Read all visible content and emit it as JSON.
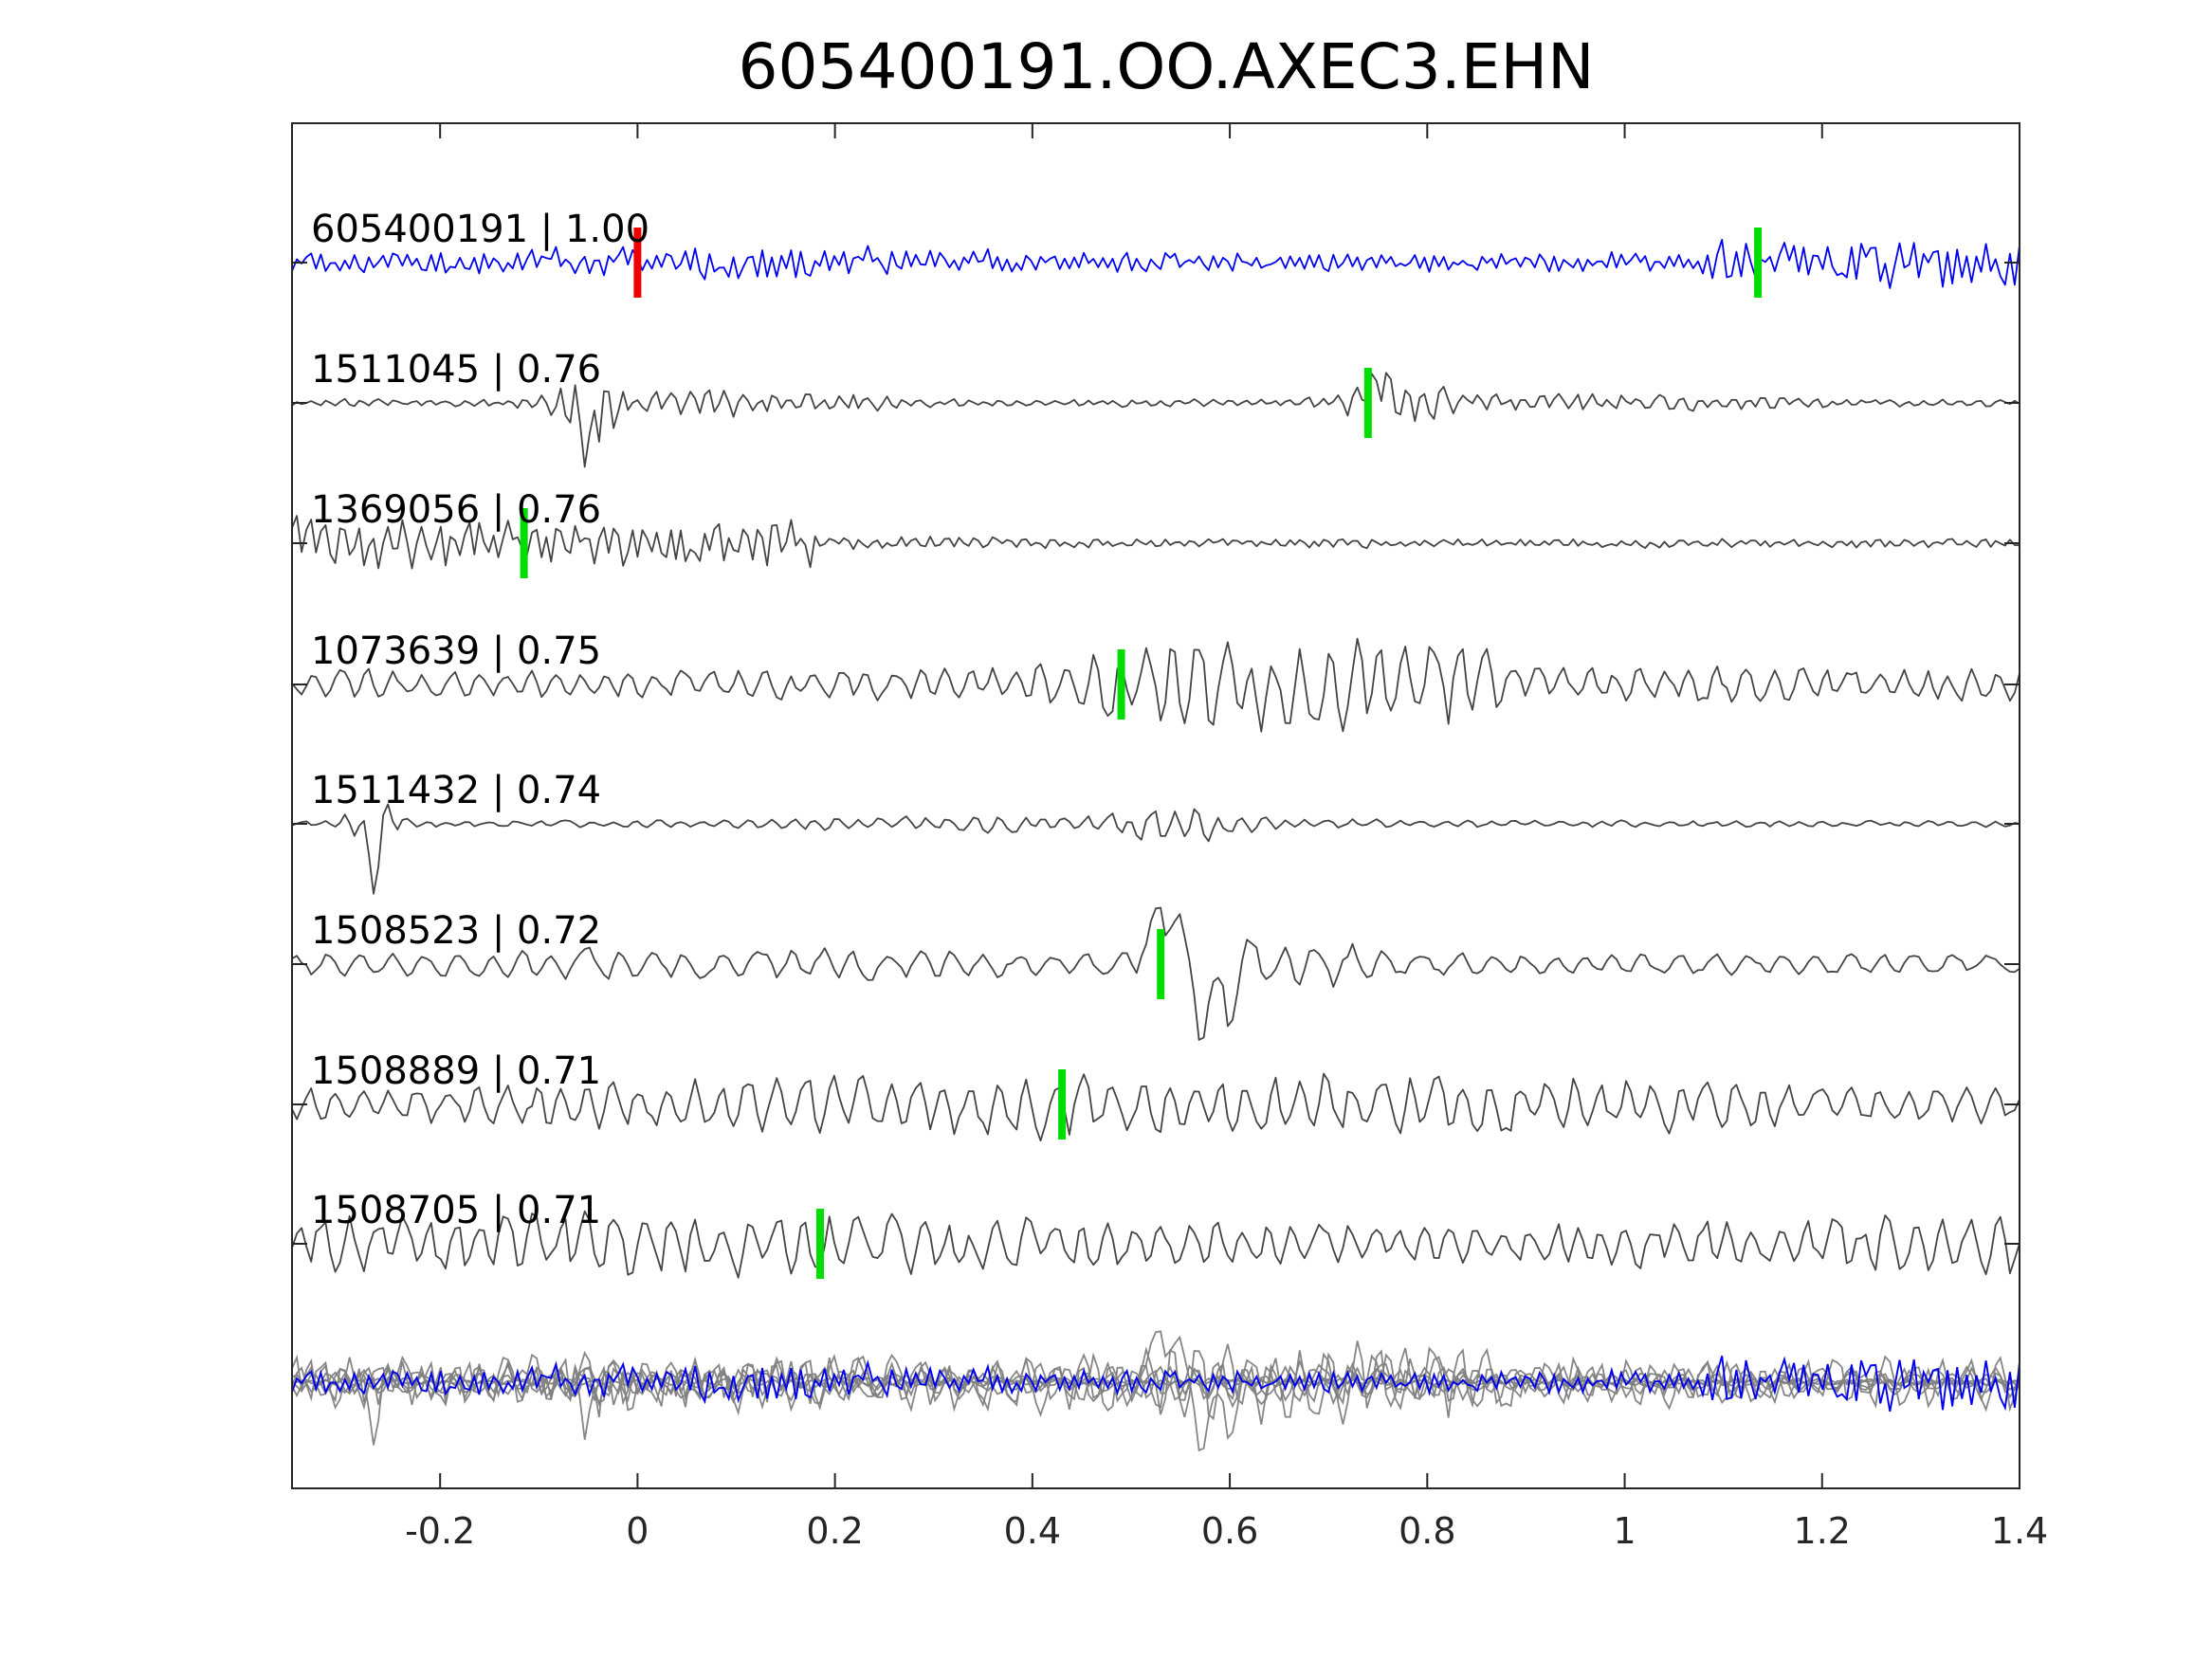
{
  "chart_data": {
    "type": "line",
    "title": "605400191.OO.AXEC3.EHN",
    "xlabel": "",
    "ylabel": "",
    "xlim": [
      -0.35,
      1.4
    ],
    "xticks": [
      -0.2,
      0,
      0.2,
      0.4,
      0.6,
      0.8,
      1,
      1.2,
      1.4
    ],
    "xtick_labels": [
      "-0.2",
      "0",
      "0.2",
      "0.4",
      "0.6",
      "0.8",
      "1",
      "1.2",
      "1.4"
    ],
    "grid": false,
    "layout": "stacked-waveforms",
    "reference_pick_time": 0.0,
    "summary_overlay": "all traces superimposed at bottom",
    "series": [
      {
        "label": "605400191 | 1.00",
        "id": "605400191",
        "correlation": 1.0,
        "color": "#0000ee",
        "pick_time": 1.135,
        "amplitude_profile": "noisy, larger after 1.1"
      },
      {
        "label": "1511045 | 0.76",
        "id": "1511045",
        "correlation": 0.76,
        "color": "#444444",
        "pick_time": 0.74,
        "amplitude_profile": "spike near -0.05, burst near 0.75"
      },
      {
        "label": "1369056 | 0.76",
        "id": "1369056",
        "correlation": 0.76,
        "color": "#444444",
        "pick_time": -0.115,
        "amplitude_profile": "large oscillation before 0.2, small after"
      },
      {
        "label": "1073639 | 0.75",
        "id": "1073639",
        "correlation": 0.75,
        "color": "#444444",
        "pick_time": 0.49,
        "amplitude_profile": "large arrivals 0.5 to 0.85"
      },
      {
        "label": "1511432 | 0.74",
        "id": "1511432",
        "correlation": 0.74,
        "color": "#444444",
        "pick_time": null,
        "amplitude_profile": "spike near -0.27, small wiggles near 0.55"
      },
      {
        "label": "1508523 | 0.72",
        "id": "1508523",
        "correlation": 0.72,
        "color": "#444444",
        "pick_time": 0.53,
        "amplitude_profile": "large pulse near 0.57"
      },
      {
        "label": "1508889 | 0.71",
        "id": "1508889",
        "correlation": 0.71,
        "color": "#444444",
        "pick_time": 0.43,
        "amplitude_profile": "high amplitude throughout"
      },
      {
        "label": "1508705 | 0.71",
        "id": "1508705",
        "correlation": 0.71,
        "color": "#444444",
        "pick_time": 0.185,
        "amplitude_profile": "high amplitude throughout"
      }
    ],
    "pick_colors": {
      "reference": "#ee0000",
      "arrival": "#00dd00"
    },
    "overlay_gray": "#808080"
  }
}
